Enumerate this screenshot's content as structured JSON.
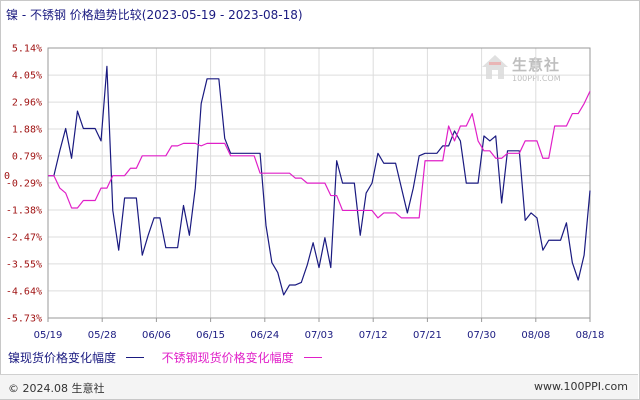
{
  "title": "镍 - 不锈钢 价格趋势比较(2023-05-19 - 2023-08-18)",
  "logo": {
    "name": "生意社",
    "url": "100PPI.COM"
  },
  "footer": {
    "copyright": "© 2024.08 生意社",
    "website": "www.100PPI.com"
  },
  "colors": {
    "nickel": "#1a1a80",
    "stainless": "#e020c8",
    "grid": "#dddddd",
    "axis": "#999999"
  },
  "chart_data": {
    "type": "line",
    "title": "镍 - 不锈钢 价格趋势比较(2023-05-19 - 2023-08-18)",
    "ylim": [
      -5.73,
      5.14
    ],
    "y_ticks": [
      "5.14%",
      "4.05%",
      "2.96%",
      "1.88%",
      "0.79%",
      "-0.29%",
      "-1.38%",
      "-2.47%",
      "-3.55%",
      "-4.64%",
      "-5.73%"
    ],
    "y_tick_values": [
      5.14,
      4.05,
      2.96,
      1.88,
      0.79,
      -0.29,
      -1.38,
      -2.47,
      -3.55,
      -4.64,
      -5.73
    ],
    "zero_label": "0",
    "x_ticks": [
      "05/19",
      "05/28",
      "06/06",
      "06/15",
      "06/24",
      "07/03",
      "07/12",
      "07/21",
      "07/30",
      "08/08",
      "08/18"
    ],
    "x_range_days": [
      0,
      91
    ],
    "grid": true,
    "legend_position": "bottom-left",
    "series": [
      {
        "name": "镍现货价格变化幅度",
        "color": "#1a1a80",
        "points": [
          [
            0,
            0
          ],
          [
            1,
            0
          ],
          [
            2,
            1.0
          ],
          [
            3,
            1.9
          ],
          [
            4,
            0.7
          ],
          [
            5,
            2.6
          ],
          [
            6,
            1.9
          ],
          [
            7,
            1.9
          ],
          [
            8,
            1.9
          ],
          [
            9,
            1.4
          ],
          [
            10,
            4.4
          ],
          [
            11,
            -1.4
          ],
          [
            12,
            -3.0
          ],
          [
            13,
            -0.9
          ],
          [
            14,
            -0.9
          ],
          [
            15,
            -0.9
          ],
          [
            16,
            -3.2
          ],
          [
            17,
            -2.4
          ],
          [
            18,
            -1.7
          ],
          [
            19,
            -1.7
          ],
          [
            20,
            -2.9
          ],
          [
            21,
            -2.9
          ],
          [
            22,
            -2.9
          ],
          [
            23,
            -1.2
          ],
          [
            24,
            -2.4
          ],
          [
            25,
            -0.5
          ],
          [
            26,
            2.9
          ],
          [
            27,
            3.9
          ],
          [
            28,
            3.9
          ],
          [
            29,
            3.9
          ],
          [
            30,
            1.5
          ],
          [
            31,
            0.9
          ],
          [
            32,
            0.9
          ],
          [
            33,
            0.9
          ],
          [
            34,
            0.9
          ],
          [
            35,
            0.9
          ],
          [
            36,
            0.9
          ],
          [
            37,
            -2.0
          ],
          [
            38,
            -3.5
          ],
          [
            39,
            -3.9
          ],
          [
            40,
            -4.8
          ],
          [
            41,
            -4.4
          ],
          [
            42,
            -4.4
          ],
          [
            43,
            -4.3
          ],
          [
            44,
            -3.6
          ],
          [
            45,
            -2.7
          ],
          [
            46,
            -3.7
          ],
          [
            47,
            -2.5
          ],
          [
            48,
            -3.7
          ],
          [
            49,
            0.6
          ],
          [
            50,
            -0.3
          ],
          [
            51,
            -0.3
          ],
          [
            52,
            -0.3
          ],
          [
            53,
            -2.4
          ],
          [
            54,
            -0.7
          ],
          [
            55,
            -0.3
          ],
          [
            56,
            0.9
          ],
          [
            57,
            0.5
          ],
          [
            58,
            0.5
          ],
          [
            59,
            0.5
          ],
          [
            60,
            -0.5
          ],
          [
            61,
            -1.5
          ],
          [
            62,
            -0.5
          ],
          [
            63,
            0.8
          ],
          [
            64,
            0.9
          ],
          [
            65,
            0.9
          ],
          [
            66,
            0.9
          ],
          [
            67,
            1.2
          ],
          [
            68,
            1.2
          ],
          [
            69,
            1.8
          ],
          [
            70,
            1.4
          ],
          [
            71,
            -0.3
          ],
          [
            72,
            -0.3
          ],
          [
            73,
            -0.3
          ],
          [
            74,
            1.6
          ],
          [
            75,
            1.4
          ],
          [
            76,
            1.6
          ],
          [
            77,
            -1.1
          ],
          [
            78,
            1.0
          ],
          [
            79,
            1.0
          ],
          [
            80,
            1.0
          ],
          [
            81,
            -1.8
          ],
          [
            82,
            -1.5
          ],
          [
            83,
            -1.7
          ],
          [
            84,
            -3.0
          ],
          [
            85,
            -2.6
          ],
          [
            86,
            -2.6
          ],
          [
            87,
            -2.6
          ],
          [
            88,
            -1.9
          ],
          [
            89,
            -3.5
          ],
          [
            90,
            -4.2
          ],
          [
            91,
            -3.2
          ],
          [
            92,
            -0.6
          ]
        ]
      },
      {
        "name": "不锈钢现货价格变化幅度",
        "color": "#e020c8",
        "points": [
          [
            0,
            0
          ],
          [
            1,
            0
          ],
          [
            2,
            -0.5
          ],
          [
            3,
            -0.7
          ],
          [
            4,
            -1.3
          ],
          [
            5,
            -1.3
          ],
          [
            6,
            -1.0
          ],
          [
            7,
            -1.0
          ],
          [
            8,
            -1.0
          ],
          [
            9,
            -0.5
          ],
          [
            10,
            -0.5
          ],
          [
            11,
            0
          ],
          [
            12,
            0
          ],
          [
            13,
            0
          ],
          [
            14,
            0.3
          ],
          [
            15,
            0.3
          ],
          [
            16,
            0.8
          ],
          [
            17,
            0.8
          ],
          [
            18,
            0.8
          ],
          [
            19,
            0.8
          ],
          [
            20,
            0.8
          ],
          [
            21,
            1.2
          ],
          [
            22,
            1.2
          ],
          [
            23,
            1.3
          ],
          [
            24,
            1.3
          ],
          [
            25,
            1.3
          ],
          [
            26,
            1.2
          ],
          [
            27,
            1.3
          ],
          [
            28,
            1.3
          ],
          [
            29,
            1.3
          ],
          [
            30,
            1.3
          ],
          [
            31,
            0.8
          ],
          [
            32,
            0.8
          ],
          [
            33,
            0.8
          ],
          [
            34,
            0.8
          ],
          [
            35,
            0.8
          ],
          [
            36,
            0.1
          ],
          [
            37,
            0.1
          ],
          [
            38,
            0.1
          ],
          [
            39,
            0.1
          ],
          [
            40,
            0.1
          ],
          [
            41,
            0.1
          ],
          [
            42,
            -0.1
          ],
          [
            43,
            -0.1
          ],
          [
            44,
            -0.3
          ],
          [
            45,
            -0.3
          ],
          [
            46,
            -0.3
          ],
          [
            47,
            -0.3
          ],
          [
            48,
            -0.8
          ],
          [
            49,
            -0.8
          ],
          [
            50,
            -1.4
          ],
          [
            51,
            -1.4
          ],
          [
            52,
            -1.4
          ],
          [
            53,
            -1.4
          ],
          [
            54,
            -1.4
          ],
          [
            55,
            -1.4
          ],
          [
            56,
            -1.7
          ],
          [
            57,
            -1.5
          ],
          [
            58,
            -1.5
          ],
          [
            59,
            -1.5
          ],
          [
            60,
            -1.7
          ],
          [
            61,
            -1.7
          ],
          [
            62,
            -1.7
          ],
          [
            63,
            -1.7
          ],
          [
            64,
            0.6
          ],
          [
            65,
            0.6
          ],
          [
            66,
            0.6
          ],
          [
            67,
            0.6
          ],
          [
            68,
            2.0
          ],
          [
            69,
            1.4
          ],
          [
            70,
            2.0
          ],
          [
            71,
            2.0
          ],
          [
            72,
            2.5
          ],
          [
            73,
            1.4
          ],
          [
            74,
            1.0
          ],
          [
            75,
            1.0
          ],
          [
            76,
            0.7
          ],
          [
            77,
            0.7
          ],
          [
            78,
            0.9
          ],
          [
            79,
            0.9
          ],
          [
            80,
            0.9
          ],
          [
            81,
            1.4
          ],
          [
            82,
            1.4
          ],
          [
            83,
            1.4
          ],
          [
            84,
            0.7
          ],
          [
            85,
            0.7
          ],
          [
            86,
            2.0
          ],
          [
            87,
            2.0
          ],
          [
            88,
            2.0
          ],
          [
            89,
            2.5
          ],
          [
            90,
            2.5
          ],
          [
            91,
            2.9
          ],
          [
            92,
            3.4
          ]
        ]
      }
    ]
  }
}
